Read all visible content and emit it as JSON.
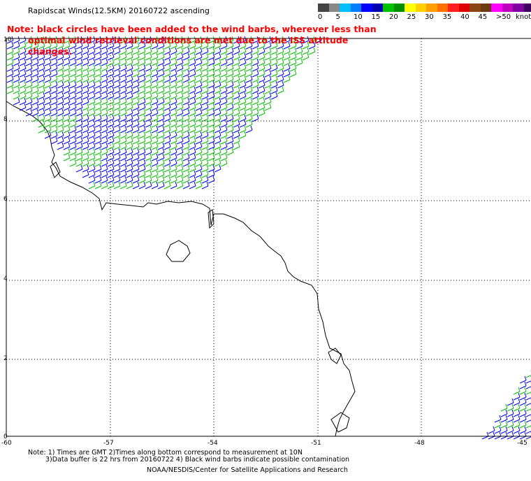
{
  "title": "Rapidscat Winds(12.5KM) 20160722 ascending",
  "note": {
    "line1": "Note: black circles have been added to the wind barbs, wherever less than",
    "line2": "optimal wind retrieval conditions are met due to the ISS attitude changes."
  },
  "legend": {
    "unit_label": "knots",
    "labels": [
      "0",
      "5",
      "10",
      "15",
      "20",
      "25",
      "30",
      "35",
      "40",
      "45",
      ">50"
    ],
    "colors": [
      "#444444",
      "#888888",
      "#00bfff",
      "#0080ff",
      "#0000ff",
      "#0000b0",
      "#00c000",
      "#009000",
      "#ffff00",
      "#ffd000",
      "#ffa000",
      "#ff7000",
      "#ff2020",
      "#e00000",
      "#8b4513",
      "#6b3a10",
      "#ff00ff",
      "#c000c0",
      "#8000a0",
      "#400060"
    ]
  },
  "axes": {
    "y_ticks": [
      "10",
      "8",
      "6",
      "4",
      "2",
      "0"
    ],
    "x_ticks": [
      "-60",
      "-57",
      "-54",
      "-51",
      "-48",
      "-45"
    ]
  },
  "footer": {
    "line1": "Note: 1) Times are GMT 2)Times along bottom correspond to measurement at 10N",
    "line2": "3)Data buffer is 22 hrs from 20160722 4) Black wind barbs indicate possible contamination",
    "line3": "NOAA/NESDIS/Center for Satellite Applications and Research"
  },
  "colors": {
    "blue_barb": "#0000ff",
    "green_barb": "#00c000",
    "note_text": "#ff0000",
    "coastline": "#000000",
    "grid": "#000000"
  }
}
